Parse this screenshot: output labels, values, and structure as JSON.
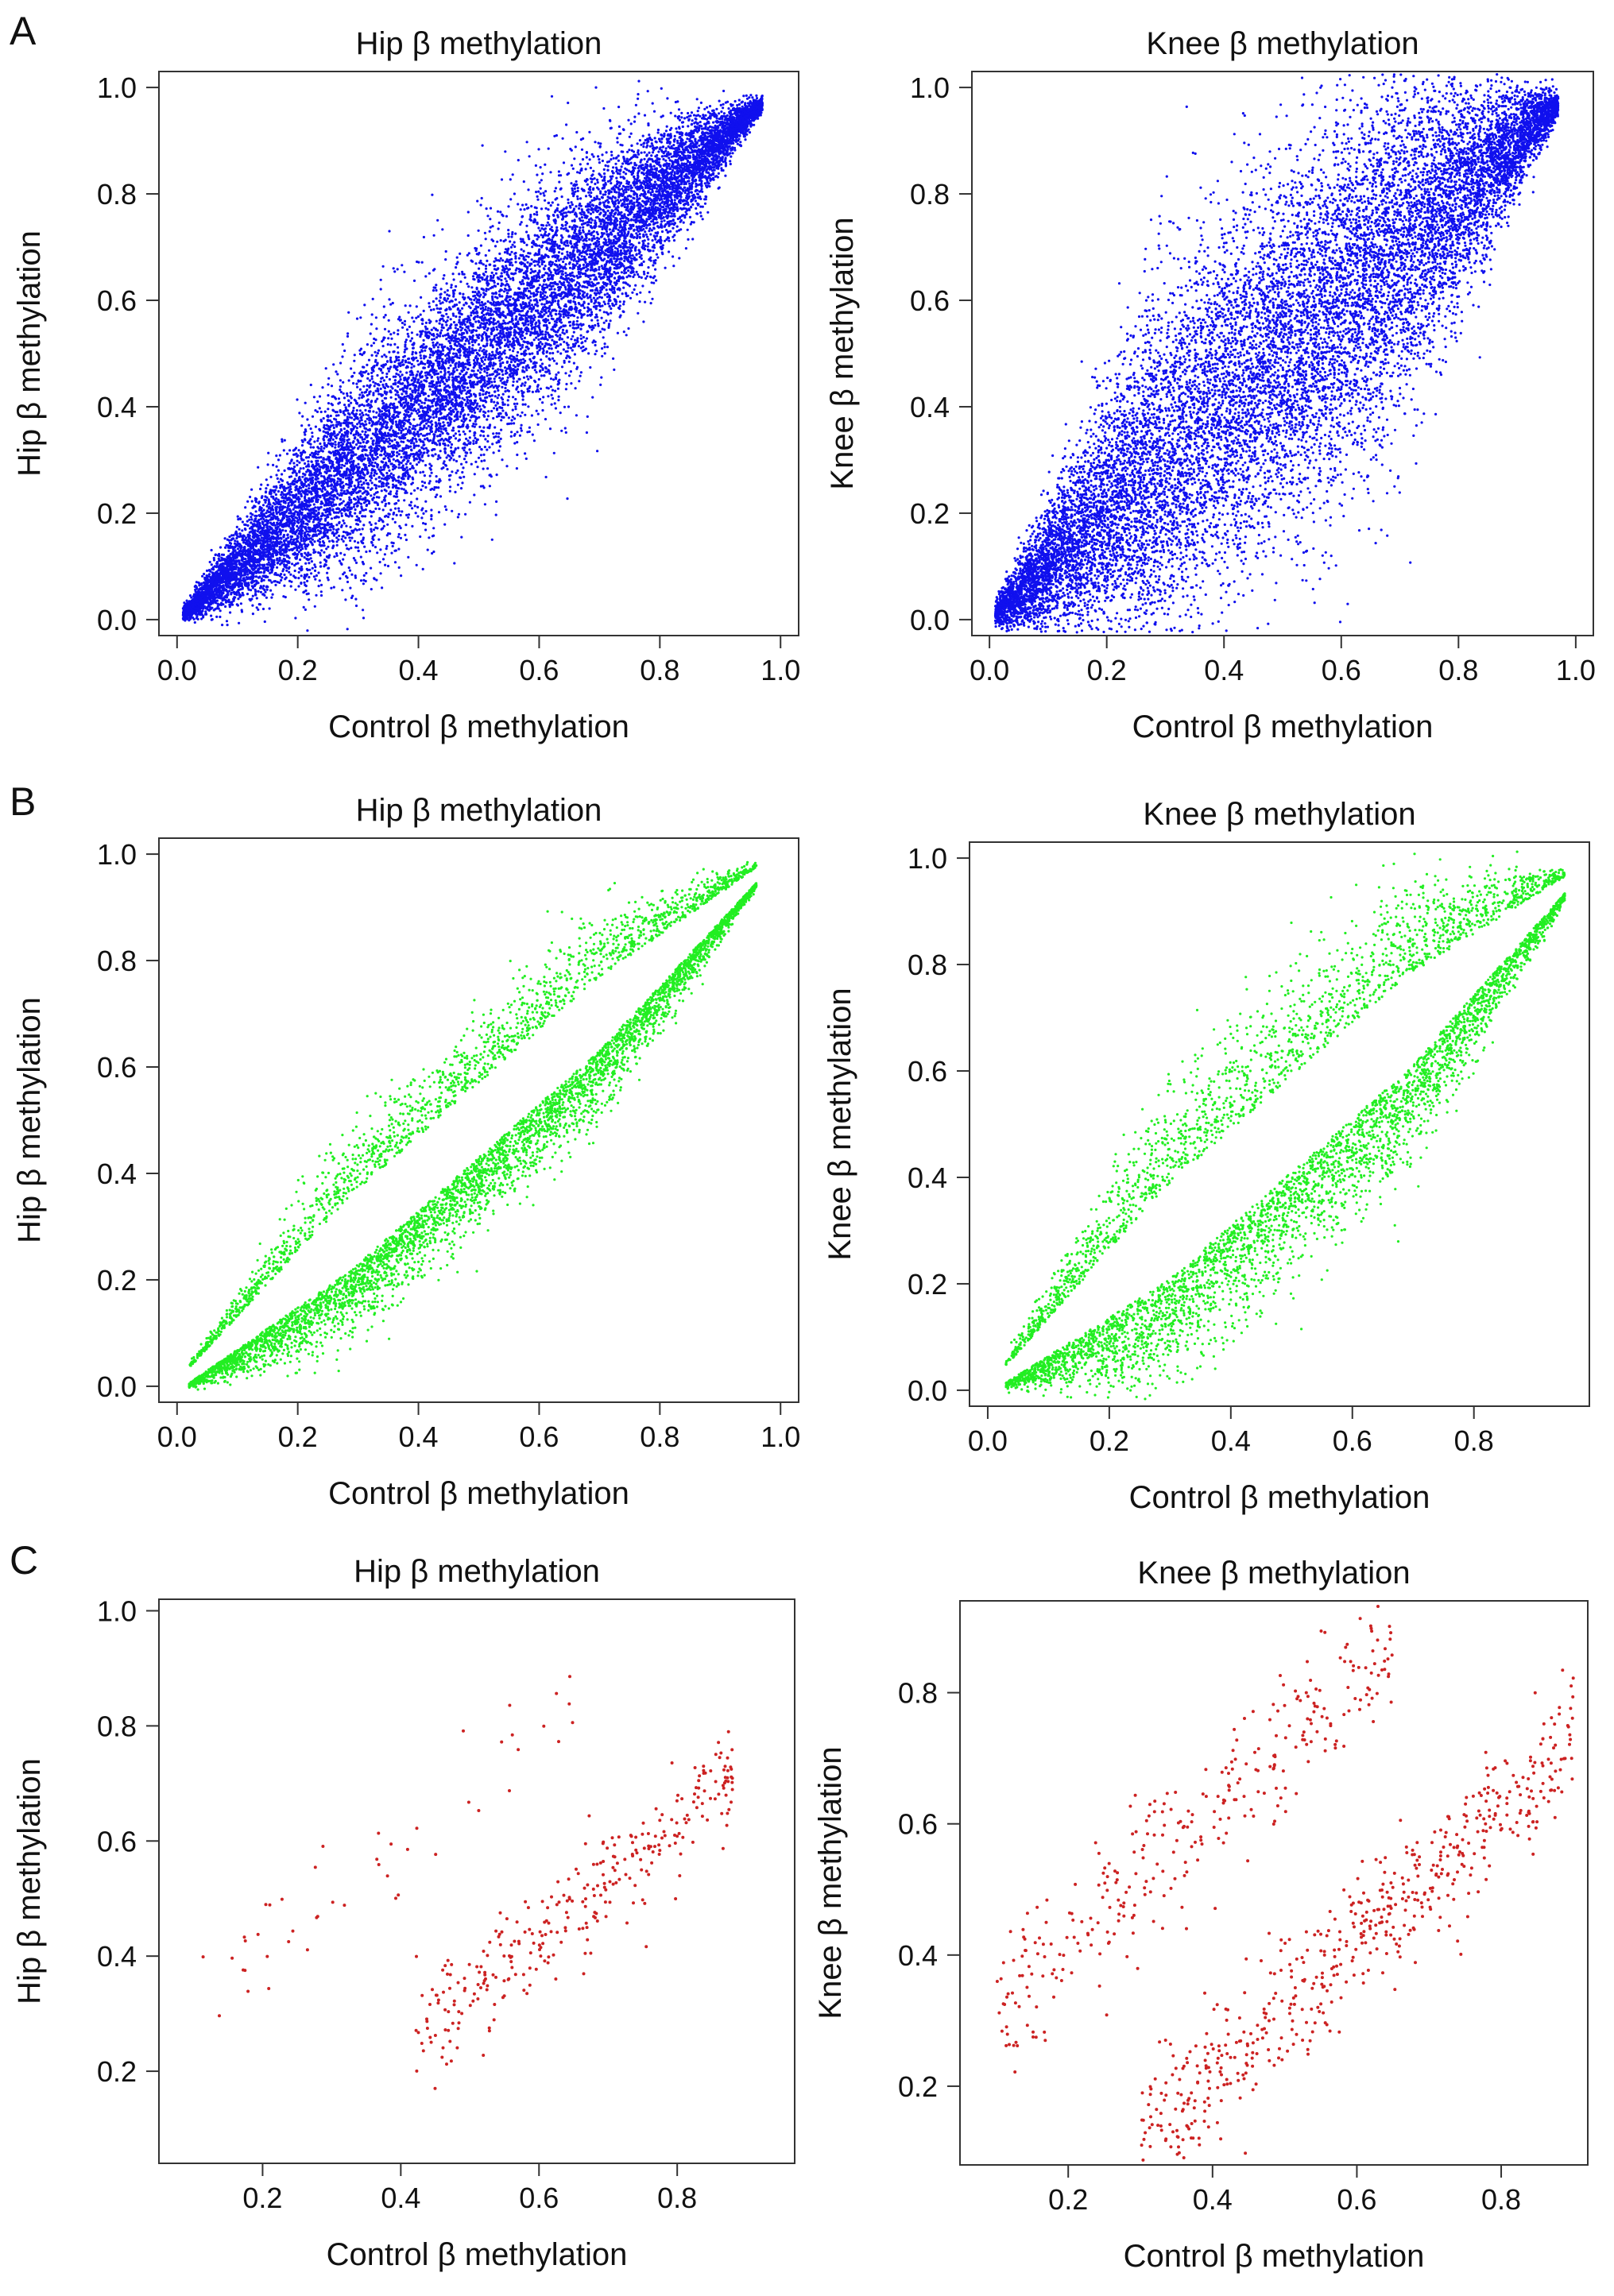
{
  "panels": [
    {
      "letter": "A"
    },
    {
      "letter": "B"
    },
    {
      "letter": "C"
    }
  ],
  "chart_data": [
    {
      "id": "A-hip",
      "type": "scatter",
      "panel": "A",
      "color": "#1010ee",
      "title": "Hip β methylation",
      "xlabel": "Control β methylation",
      "ylabel": "Hip β methylation",
      "xlim": [
        -0.03,
        1.03
      ],
      "ylim": [
        -0.03,
        1.03
      ],
      "xticks": [
        "0.0",
        "0.2",
        "0.4",
        "0.6",
        "0.8",
        "1.0"
      ],
      "xtick_values": [
        0,
        0.2,
        0.4,
        0.6,
        0.8,
        1.0
      ],
      "yticks": [
        "0.0",
        "0.2",
        "0.4",
        "0.6",
        "0.8",
        "1.0"
      ],
      "ytick_values": [
        0,
        0.2,
        0.4,
        0.6,
        0.8,
        1.0
      ],
      "points": {
        "n": 14000,
        "x_range": [
          0.01,
          0.97
        ],
        "band": "diagonal",
        "spread": 0.1,
        "offset": 0.0
      }
    },
    {
      "id": "A-knee",
      "type": "scatter",
      "panel": "A",
      "color": "#1010ee",
      "title": "Knee β methylation",
      "xlabel": "Control β methylation",
      "ylabel": "Knee β methylation",
      "xlim": [
        -0.03,
        1.03
      ],
      "ylim": [
        -0.03,
        1.03
      ],
      "xticks": [
        "0.0",
        "0.2",
        "0.4",
        "0.6",
        "0.8",
        "1.0"
      ],
      "xtick_values": [
        0,
        0.2,
        0.4,
        0.6,
        0.8,
        1.0
      ],
      "yticks": [
        "0.0",
        "0.2",
        "0.4",
        "0.6",
        "0.8",
        "1.0"
      ],
      "ytick_values": [
        0,
        0.2,
        0.4,
        0.6,
        0.8,
        1.0
      ],
      "points": {
        "n": 14000,
        "x_range": [
          0.01,
          0.97
        ],
        "band": "diagonal",
        "spread": 0.17,
        "offset": 0.0
      }
    },
    {
      "id": "B-hip",
      "type": "scatter",
      "panel": "B",
      "color": "#22ee22",
      "title": "Hip β methylation",
      "xlabel": "Control β methylation",
      "ylabel": "Hip β methylation",
      "xlim": [
        -0.03,
        1.03
      ],
      "ylim": [
        -0.03,
        1.03
      ],
      "xticks": [
        "0.0",
        "0.2",
        "0.4",
        "0.6",
        "0.8",
        "1.0"
      ],
      "xtick_values": [
        0,
        0.2,
        0.4,
        0.6,
        0.8,
        1.0
      ],
      "yticks": [
        "0.0",
        "0.2",
        "0.4",
        "0.6",
        "0.8",
        "1.0"
      ],
      "ytick_values": [
        0,
        0.2,
        0.4,
        0.6,
        0.8,
        1.0
      ],
      "points": {
        "n": 6000,
        "x_range": [
          0.02,
          0.96
        ],
        "band": "split",
        "spread": 0.06,
        "offset": 0.06,
        "upper_fraction": 0.3
      }
    },
    {
      "id": "B-knee",
      "type": "scatter",
      "panel": "B",
      "color": "#22ee22",
      "title": "Knee β methylation",
      "xlabel": "Control β methylation",
      "ylabel": "Knee β methylation",
      "xlim": [
        -0.03,
        0.99
      ],
      "ylim": [
        -0.03,
        1.03
      ],
      "xticks": [
        "0.0",
        "0.2",
        "0.4",
        "0.6",
        "0.8"
      ],
      "xtick_values": [
        0,
        0.2,
        0.4,
        0.6,
        0.8
      ],
      "yticks": [
        "0.0",
        "0.2",
        "0.4",
        "0.6",
        "0.8",
        "1.0"
      ],
      "ytick_values": [
        0,
        0.2,
        0.4,
        0.6,
        0.8,
        1.0
      ],
      "points": {
        "n": 5500,
        "x_range": [
          0.03,
          0.95
        ],
        "band": "split",
        "spread": 0.09,
        "offset": 0.08,
        "upper_fraction": 0.35
      }
    },
    {
      "id": "C-hip",
      "type": "scatter",
      "panel": "C",
      "color": "#cc2222",
      "title": "Hip β methylation",
      "xlabel": "Control β methylation",
      "ylabel": "Hip β methylation",
      "xlim": [
        0.05,
        0.97
      ],
      "ylim": [
        0.04,
        1.02
      ],
      "xticks": [
        "0.2",
        "0.4",
        "0.6",
        "0.8"
      ],
      "xtick_values": [
        0.2,
        0.4,
        0.6,
        0.8
      ],
      "yticks": [
        "0.2",
        "0.4",
        "0.6",
        "0.8",
        "1.0"
      ],
      "ytick_values": [
        0.2,
        0.4,
        0.6,
        0.8,
        1.0
      ],
      "points": {
        "n": 360,
        "x_range": [
          0.42,
          0.88
        ],
        "band": "sparse",
        "spread": 0.05,
        "offset": -0.17,
        "upper_fraction": 0.12
      }
    },
    {
      "id": "C-knee",
      "type": "scatter",
      "panel": "C",
      "color": "#cc2222",
      "title": "Knee β methylation",
      "xlabel": "Control β methylation",
      "ylabel": "Knee β methylation",
      "xlim": [
        0.05,
        0.92
      ],
      "ylim": [
        0.08,
        0.94
      ],
      "xticks": [
        "0.2",
        "0.4",
        "0.6",
        "0.8"
      ],
      "xtick_values": [
        0.2,
        0.4,
        0.6,
        0.8
      ],
      "yticks": [
        "0.2",
        "0.4",
        "0.6",
        "0.8"
      ],
      "ytick_values": [
        0.2,
        0.4,
        0.6,
        0.8
      ],
      "points": {
        "n": 900,
        "x_range": [
          0.08,
          0.9
        ],
        "band": "sparse-two",
        "spread": 0.05,
        "offset": 0.22,
        "upper_fraction": 0.35
      }
    }
  ]
}
